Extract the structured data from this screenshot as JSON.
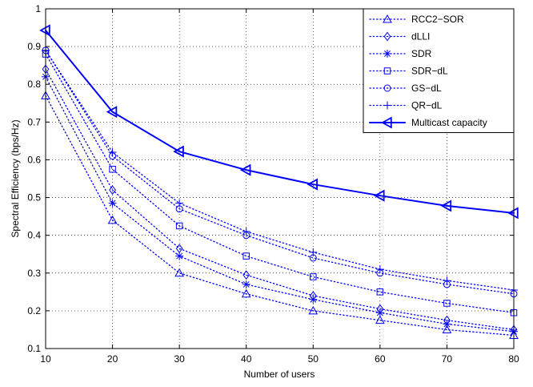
{
  "chart_data": {
    "type": "line",
    "xlabel": "Number of users",
    "ylabel": "Spectral Efficiency (bps/Hz)",
    "xlim": [
      10,
      80
    ],
    "ylim": [
      0.1,
      1
    ],
    "xticks": [
      10,
      20,
      30,
      40,
      50,
      60,
      70,
      80
    ],
    "yticks": [
      0.1,
      0.2,
      0.3,
      0.4,
      0.5,
      0.6,
      0.7,
      0.8,
      0.9,
      1
    ],
    "ytick_labels": [
      "0.1",
      "0.2",
      "0.3",
      "0.4",
      "0.5",
      "0.6",
      "0.7",
      "0.8",
      "0.9",
      "1"
    ],
    "grid": true,
    "legend_position": "top-right",
    "color": "#0000ff",
    "x": [
      10,
      20,
      30,
      40,
      50,
      60,
      70,
      80
    ],
    "series": [
      {
        "name": "RCC2−SOR",
        "marker": "triangle-up",
        "style": "dotted",
        "values": [
          0.77,
          0.44,
          0.3,
          0.245,
          0.2,
          0.175,
          0.15,
          0.135
        ]
      },
      {
        "name": "dLLI",
        "marker": "diamond",
        "style": "dotted",
        "values": [
          0.84,
          0.52,
          0.365,
          0.295,
          0.24,
          0.205,
          0.175,
          0.15
        ]
      },
      {
        "name": "SDR",
        "marker": "star",
        "style": "dotted",
        "values": [
          0.82,
          0.485,
          0.345,
          0.27,
          0.23,
          0.195,
          0.165,
          0.145
        ]
      },
      {
        "name": "SDR−dL",
        "marker": "square",
        "style": "dotted",
        "values": [
          0.88,
          0.575,
          0.425,
          0.345,
          0.29,
          0.25,
          0.22,
          0.195
        ]
      },
      {
        "name": "GS−dL",
        "marker": "circle",
        "style": "dotted",
        "values": [
          0.89,
          0.61,
          0.47,
          0.4,
          0.34,
          0.3,
          0.27,
          0.245
        ]
      },
      {
        "name": "QR−dL",
        "marker": "plus",
        "style": "dotted",
        "values": [
          0.89,
          0.62,
          0.485,
          0.41,
          0.355,
          0.31,
          0.28,
          0.255
        ]
      },
      {
        "name": "Multicast capacity",
        "marker": "triangle-left",
        "style": "solid",
        "values": [
          0.943,
          0.727,
          0.622,
          0.573,
          0.535,
          0.505,
          0.478,
          0.459
        ]
      }
    ]
  }
}
